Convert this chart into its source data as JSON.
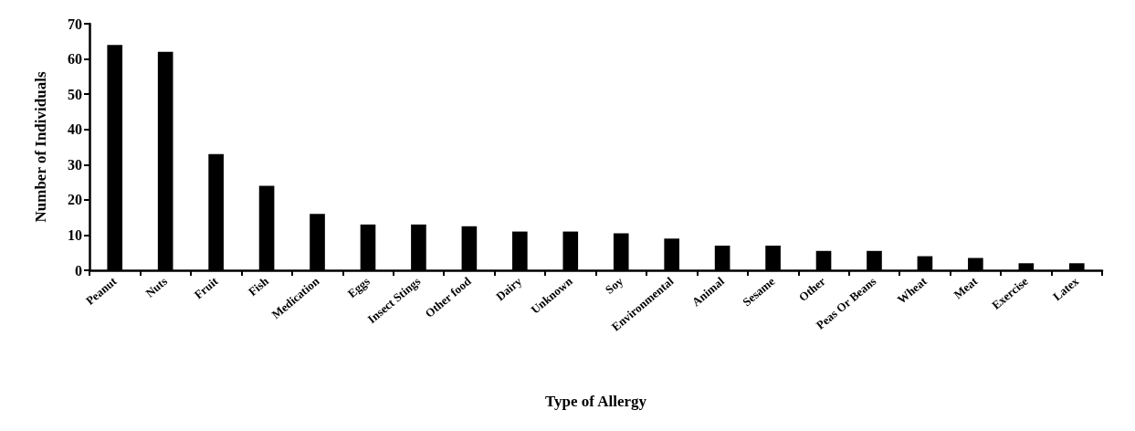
{
  "chart_data": {
    "type": "bar",
    "xlabel": "Type of Allergy",
    "ylabel": "Number of Individuals",
    "categories": [
      "Peanut",
      "Nuts",
      "Fruit",
      "Fish",
      "Medication",
      "Eggs",
      "Insect Stings",
      "Other food",
      "Dairy",
      "Unknown",
      "Soy",
      "Environmental",
      "Animal",
      "Sesame",
      "Other",
      "Peas Or Beans",
      "Wheat",
      "Meat",
      "Exercise",
      "Latex"
    ],
    "values": [
      64,
      62,
      33,
      24,
      16,
      13,
      13,
      12.5,
      11,
      11,
      10.5,
      9,
      7,
      7,
      5.5,
      5.5,
      4,
      3.5,
      2,
      2
    ],
    "color": "#000000",
    "ylim": [
      0,
      70
    ],
    "yticks": [
      0,
      10,
      20,
      30,
      40,
      50,
      60,
      70
    ],
    "grid": false
  }
}
